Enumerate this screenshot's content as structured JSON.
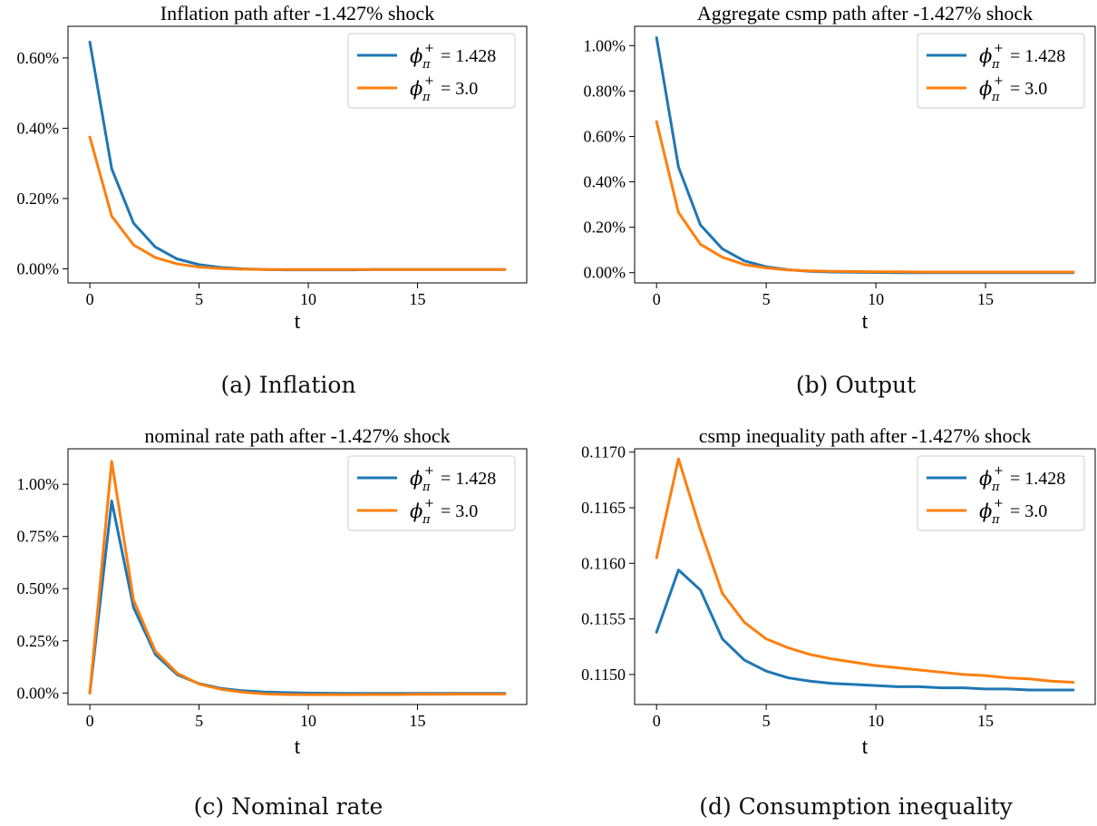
{
  "chart_data": [
    {
      "type": "line",
      "title": "Inflation path after -1.427% shock",
      "xlabel": "t",
      "ylabel": "",
      "caption": "(a) Inflation",
      "x": [
        0,
        1,
        2,
        3,
        4,
        5,
        6,
        7,
        8,
        9,
        10,
        11,
        12,
        13,
        14,
        15,
        16,
        17,
        18,
        19
      ],
      "xlim": [
        -1,
        20
      ],
      "ylim": [
        -0.04,
        0.69
      ],
      "xticks": [
        0,
        5,
        10,
        15
      ],
      "yticks": [
        0.0,
        0.2,
        0.4,
        0.6
      ],
      "ytick_labels": [
        "0.00%",
        "0.20%",
        "0.40%",
        "0.60%"
      ],
      "legend": "top-right",
      "grid": false,
      "series": [
        {
          "name": "φπ+ = 1.428",
          "legend_symbol": "ϕ",
          "legend_sub": "π",
          "legend_sup": "+",
          "legend_value": "= 1.428",
          "color": "#1f77b4",
          "values": [
            0.645,
            0.285,
            0.13,
            0.062,
            0.028,
            0.012,
            0.004,
            0.0,
            -0.002,
            -0.003,
            -0.003,
            -0.003,
            -0.003,
            -0.002,
            -0.002,
            -0.002,
            -0.002,
            -0.002,
            -0.002,
            -0.002
          ]
        },
        {
          "name": "φπ+ = 3.0",
          "legend_symbol": "ϕ",
          "legend_sub": "π",
          "legend_sup": "+",
          "legend_value": "= 3.0",
          "color": "#ff7f0e",
          "values": [
            0.375,
            0.15,
            0.068,
            0.032,
            0.014,
            0.005,
            0.001,
            -0.001,
            -0.002,
            -0.002,
            -0.002,
            -0.002,
            -0.002,
            -0.002,
            -0.002,
            -0.002,
            -0.002,
            -0.002,
            -0.002,
            -0.002
          ]
        }
      ]
    },
    {
      "type": "line",
      "title": "Aggregate csmp path after -1.427% shock",
      "xlabel": "t",
      "ylabel": "",
      "caption": "(b) Output",
      "x": [
        0,
        1,
        2,
        3,
        4,
        5,
        6,
        7,
        8,
        9,
        10,
        11,
        12,
        13,
        14,
        15,
        16,
        17,
        18,
        19
      ],
      "xlim": [
        -1,
        20
      ],
      "ylim": [
        -0.045,
        1.085
      ],
      "xticks": [
        0,
        5,
        10,
        15
      ],
      "yticks": [
        0.0,
        0.2,
        0.4,
        0.6,
        0.8,
        1.0
      ],
      "ytick_labels": [
        "0.00%",
        "0.20%",
        "0.40%",
        "0.60%",
        "0.80%",
        "1.00%"
      ],
      "legend": "top-right",
      "grid": false,
      "series": [
        {
          "name": "φπ+ = 1.428",
          "legend_symbol": "ϕ",
          "legend_sub": "π",
          "legend_sup": "+",
          "legend_value": "= 1.428",
          "color": "#1f77b4",
          "values": [
            1.035,
            0.465,
            0.21,
            0.105,
            0.052,
            0.026,
            0.013,
            0.006,
            0.003,
            0.002,
            0.001,
            0.0,
            0.0,
            0.0,
            0.0,
            0.0,
            0.0,
            0.0,
            0.0,
            0.0
          ]
        },
        {
          "name": "φπ+ = 3.0",
          "legend_symbol": "ϕ",
          "legend_sub": "π",
          "legend_sup": "+",
          "legend_value": "= 3.0",
          "color": "#ff7f0e",
          "values": [
            0.665,
            0.265,
            0.125,
            0.068,
            0.036,
            0.021,
            0.012,
            0.008,
            0.006,
            0.005,
            0.004,
            0.004,
            0.003,
            0.003,
            0.003,
            0.003,
            0.003,
            0.003,
            0.003,
            0.003
          ]
        }
      ]
    },
    {
      "type": "line",
      "title": "nominal rate path after -1.427% shock",
      "xlabel": "t",
      "ylabel": "",
      "caption": "(c) Nominal rate",
      "x": [
        0,
        1,
        2,
        3,
        4,
        5,
        6,
        7,
        8,
        9,
        10,
        11,
        12,
        13,
        14,
        15,
        16,
        17,
        18,
        19
      ],
      "xlim": [
        -1,
        20
      ],
      "ylim": [
        -0.055,
        1.17
      ],
      "xticks": [
        0,
        5,
        10,
        15
      ],
      "yticks": [
        0.0,
        0.25,
        0.5,
        0.75,
        1.0
      ],
      "ytick_labels": [
        "0.00%",
        "0.25%",
        "0.50%",
        "0.75%",
        "1.00%"
      ],
      "legend": "top-right",
      "grid": false,
      "series": [
        {
          "name": "φπ+ = 1.428",
          "legend_symbol": "ϕ",
          "legend_sub": "π",
          "legend_sup": "+",
          "legend_value": "= 1.428",
          "color": "#1f77b4",
          "values": [
            0.0,
            0.92,
            0.41,
            0.185,
            0.088,
            0.045,
            0.022,
            0.011,
            0.005,
            0.002,
            0.0,
            -0.001,
            -0.002,
            -0.002,
            -0.002,
            -0.002,
            -0.002,
            -0.002,
            -0.002,
            -0.002
          ]
        },
        {
          "name": "φπ+ = 3.0",
          "legend_symbol": "ϕ",
          "legend_sub": "π",
          "legend_sup": "+",
          "legend_value": "= 3.0",
          "color": "#ff7f0e",
          "values": [
            0.0,
            1.11,
            0.445,
            0.2,
            0.095,
            0.043,
            0.018,
            0.004,
            -0.004,
            -0.007,
            -0.008,
            -0.008,
            -0.008,
            -0.007,
            -0.007,
            -0.006,
            -0.006,
            -0.005,
            -0.005,
            -0.005
          ]
        }
      ]
    },
    {
      "type": "line",
      "title": "csmp inequality path after -1.427% shock",
      "xlabel": "t",
      "ylabel": "",
      "caption": "(d) Consumption inequality",
      "x": [
        0,
        1,
        2,
        3,
        4,
        5,
        6,
        7,
        8,
        9,
        10,
        11,
        12,
        13,
        14,
        15,
        16,
        17,
        18,
        19
      ],
      "xlim": [
        -1,
        20
      ],
      "ylim": [
        0.11473,
        0.11703
      ],
      "xticks": [
        0,
        5,
        10,
        15
      ],
      "yticks": [
        0.115,
        0.1155,
        0.116,
        0.1165,
        0.117
      ],
      "ytick_labels": [
        "0.1150",
        "0.1155",
        "0.1160",
        "0.1165",
        "0.1170"
      ],
      "legend": "top-right",
      "grid": false,
      "series": [
        {
          "name": "φπ+ = 1.428",
          "legend_symbol": "ϕ",
          "legend_sub": "π",
          "legend_sup": "+",
          "legend_value": "= 1.428",
          "color": "#1f77b4",
          "values": [
            0.11538,
            0.11594,
            0.11576,
            0.11532,
            0.11513,
            0.11503,
            0.11497,
            0.11494,
            0.11492,
            0.11491,
            0.1149,
            0.11489,
            0.11489,
            0.11488,
            0.11488,
            0.11487,
            0.11487,
            0.11486,
            0.11486,
            0.11486
          ]
        },
        {
          "name": "φπ+ = 3.0",
          "legend_symbol": "ϕ",
          "legend_sub": "π",
          "legend_sup": "+",
          "legend_value": "= 3.0",
          "color": "#ff7f0e",
          "values": [
            0.11605,
            0.11694,
            0.1163,
            0.11573,
            0.11547,
            0.11532,
            0.11524,
            0.11518,
            0.11514,
            0.11511,
            0.11508,
            0.11506,
            0.11504,
            0.11502,
            0.115,
            0.11499,
            0.11497,
            0.11496,
            0.11494,
            0.11493
          ]
        }
      ]
    }
  ]
}
